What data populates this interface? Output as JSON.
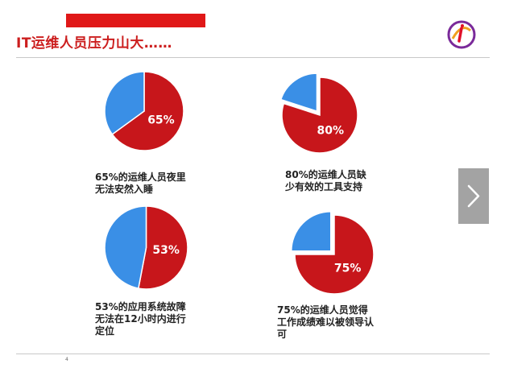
{
  "title": "IT运维人员压力山大……",
  "page_number": "4",
  "colors": {
    "accent_red": "#e01818",
    "title_red": "#cc1e1e",
    "pie_red": "#c7161b",
    "pie_blue": "#3a8fe6"
  },
  "icons": {
    "logo": "circular-swirl-logo",
    "next": "chevron-right-icon"
  },
  "chart_data": [
    {
      "type": "pie",
      "slices": [
        {
          "label": "65%",
          "value": 65,
          "color": "#c7161b"
        },
        {
          "value": 35,
          "color": "#3a8fe6"
        }
      ],
      "exploded": false,
      "caption": "65%的运维人员夜里\n无法安然入睡"
    },
    {
      "type": "pie",
      "slices": [
        {
          "label": "80%",
          "value": 80,
          "color": "#c7161b"
        },
        {
          "value": 20,
          "color": "#3a8fe6"
        }
      ],
      "exploded": true,
      "caption": "80%的运维人员缺\n少有效的工具支持"
    },
    {
      "type": "pie",
      "slices": [
        {
          "label": "53%",
          "value": 53,
          "color": "#c7161b"
        },
        {
          "value": 47,
          "color": "#3a8fe6"
        }
      ],
      "exploded": false,
      "caption": "53%的应用系统故障\n无法在12小时内进行\n定位"
    },
    {
      "type": "pie",
      "slices": [
        {
          "label": "75%",
          "value": 75,
          "color": "#c7161b"
        },
        {
          "value": 25,
          "color": "#3a8fe6"
        }
      ],
      "exploded": true,
      "caption": "75%的运维人员觉得\n工作成绩难以被领导认\n可"
    }
  ]
}
